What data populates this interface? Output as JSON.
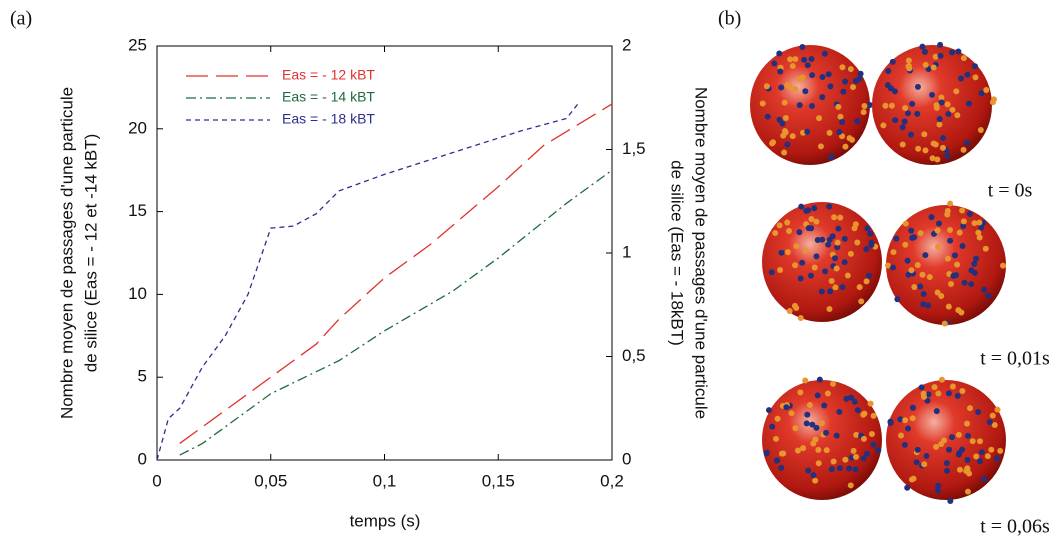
{
  "chart_data": {
    "type": "line",
    "panel_labels": [
      "(a)",
      "(b)"
    ],
    "xlabel": "temps (s)",
    "ylabel": [
      "Nombre moyen de passages d'une particule",
      "de silice (Eas = - 12 et  -14 kBT)"
    ],
    "y2label": [
      "Nombre moyen de passages d'une particule",
      "de silice (Eas = - 18kBT)"
    ],
    "xlim": [
      0,
      0.2
    ],
    "xticks": [
      0,
      {
        "value": 0.05,
        "label": "0,05"
      },
      {
        "value": 0.1,
        "label": "0,1"
      },
      {
        "value": 0.15,
        "label": "0,15"
      },
      {
        "value": 0.2,
        "label": "0,2"
      }
    ],
    "ylim": [
      0,
      25
    ],
    "yticks": [
      0,
      5,
      10,
      15,
      20,
      25
    ],
    "y2lim": [
      0,
      2
    ],
    "y2ticks": [
      0,
      {
        "value": 0.5,
        "label": "0,5"
      },
      1,
      {
        "value": 1.5,
        "label": "1,5"
      },
      2
    ],
    "series": [
      {
        "name": "Eas = - 12 kBT",
        "color": "#e0322c",
        "x": [
          0.01,
          0.02,
          0.03,
          0.05,
          0.07,
          0.08,
          0.1,
          0.12,
          0.15,
          0.17,
          0.2
        ],
        "values": [
          1,
          2,
          3,
          5,
          7,
          8.5,
          11,
          13,
          16.5,
          19,
          21.5
        ]
      },
      {
        "name": "Eas = - 14 kBT",
        "color": "#1e6b3c",
        "x": [
          0.01,
          0.02,
          0.05,
          0.08,
          0.1,
          0.13,
          0.15,
          0.18,
          0.2
        ],
        "values": [
          0.3,
          1,
          4,
          6,
          7.8,
          10.2,
          12.2,
          15.5,
          17.5
        ]
      },
      {
        "name": "Eas = - 18 kBT",
        "color": "#2b2f8f",
        "axis": "y2",
        "x": [
          0,
          0.005,
          0.01,
          0.02,
          0.03,
          0.04,
          0.05,
          0.06,
          0.07,
          0.08,
          0.1,
          0.12,
          0.14,
          0.16,
          0.18,
          0.185
        ],
        "values": [
          0,
          0.2,
          0.25,
          0.45,
          0.6,
          0.8,
          1.12,
          1.13,
          1.19,
          1.3,
          1.38,
          1.45,
          1.52,
          1.59,
          1.65,
          1.72
        ]
      }
    ],
    "image_captions": [
      "t = 0s",
      "t = 0,01s",
      "t = 0,06s"
    ]
  }
}
